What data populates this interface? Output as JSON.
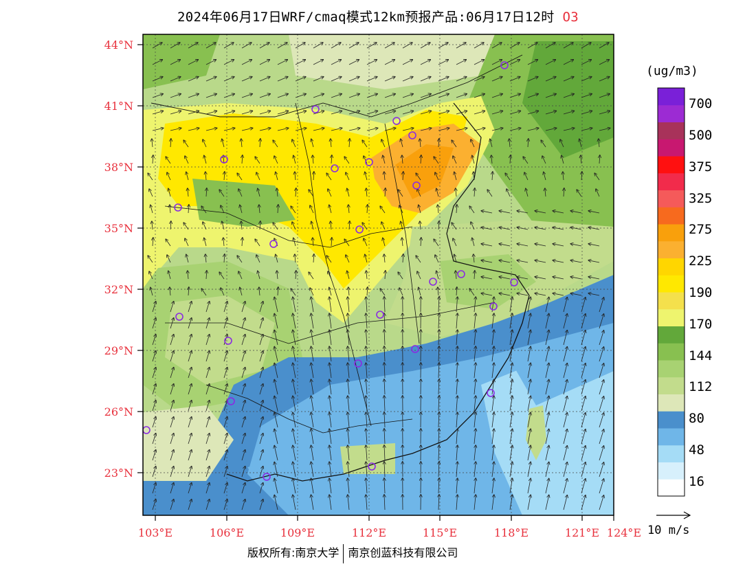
{
  "title": {
    "text": "2024年06月17日WRF/cmaq模式12km预报产品:06月17日12时",
    "pollutant": "O3"
  },
  "legend": {
    "unit": "(ug/m3)",
    "colors": [
      "#ffffff",
      "#d7f0fc",
      "#a5dcf6",
      "#6fb6e8",
      "#4a8fcc",
      "#dde7b8",
      "#c2dc8c",
      "#a8d272",
      "#88c050",
      "#62a83a",
      "#eef46e",
      "#f4e04c",
      "#ffe800",
      "#ffd600",
      "#fbb030",
      "#f9a00c",
      "#f76a1e",
      "#f55a5a",
      "#f22b4b",
      "#ff1010",
      "#c81870",
      "#a8325a",
      "#9c2bd3",
      "#7a20d8"
    ],
    "labels": [
      "16",
      "48",
      "80",
      "112",
      "144",
      "170",
      "190",
      "225",
      "275",
      "325",
      "375",
      "500",
      "700"
    ],
    "vector_label": "10 m/s"
  },
  "axes": {
    "lat_labels": [
      "44°N",
      "41°N",
      "38°N",
      "35°N",
      "32°N",
      "29°N",
      "26°N",
      "23°N"
    ],
    "lon_labels": [
      "103°E",
      "106°E",
      "109°E",
      "112°E",
      "115°E",
      "118°E",
      "121°E",
      "124°E"
    ]
  },
  "footer": {
    "left": "版权所有:南京大学",
    "right": "南京创蓝科技有限公司"
  }
}
